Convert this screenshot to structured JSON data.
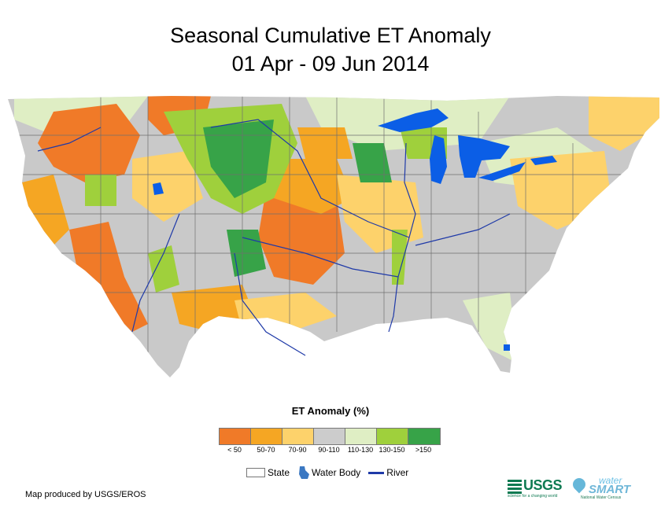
{
  "title": "Seasonal Cumulative ET Anomaly",
  "subtitle": "01 Apr - 09 Jun 2014",
  "legend": {
    "title": "ET Anomaly (%)",
    "classes": [
      {
        "label": "< 50",
        "color": "#f07a28"
      },
      {
        "label": "50-70",
        "color": "#f5a623"
      },
      {
        "label": "70-90",
        "color": "#fdd26b"
      },
      {
        "label": "90-110",
        "color": "#cccccc"
      },
      {
        "label": "110-130",
        "color": "#dfeec4"
      },
      {
        "label": "130-150",
        "color": "#9fd03c"
      },
      {
        "label": ">150",
        "color": "#37a348"
      }
    ],
    "features": {
      "state": "State",
      "water": "Water Body",
      "river": "River"
    }
  },
  "colors": {
    "water": "#0b5ee6",
    "river": "#1f3aa8",
    "state_line": "#6f6f6f"
  },
  "credit": "Map produced by USGS/EROS",
  "logos": {
    "usgs": "USGS",
    "usgs_tagline": "science for a changing world",
    "water": "water",
    "smart": "SMART",
    "smart_tagline": "National Water Census"
  }
}
